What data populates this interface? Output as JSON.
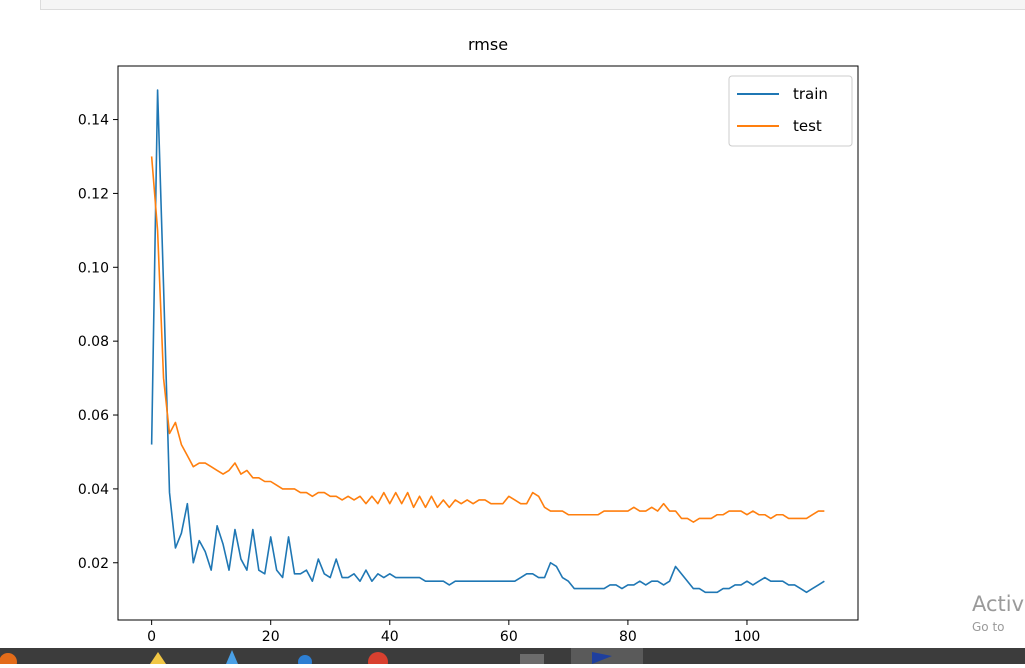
{
  "chart_data": {
    "type": "line",
    "title": "rmse",
    "xlabel": "",
    "ylabel": "",
    "xlim": [
      -5.65,
      118.65
    ],
    "ylim": [
      0.0045,
      0.1545
    ],
    "xticks": [
      0,
      20,
      40,
      60,
      80,
      100
    ],
    "yticks": [
      0.02,
      0.04,
      0.06,
      0.08,
      0.1,
      0.12,
      0.14
    ],
    "ytick_labels": [
      "0.02",
      "0.04",
      "0.06",
      "0.08",
      "0.10",
      "0.12",
      "0.14"
    ],
    "legend": "top-right",
    "grid": false,
    "series": [
      {
        "name": "train",
        "color": "#1f77b4",
        "values": [
          0.052,
          0.148,
          0.095,
          0.039,
          0.024,
          0.028,
          0.036,
          0.02,
          0.026,
          0.023,
          0.018,
          0.03,
          0.025,
          0.018,
          0.029,
          0.021,
          0.018,
          0.029,
          0.018,
          0.017,
          0.027,
          0.018,
          0.016,
          0.027,
          0.017,
          0.017,
          0.018,
          0.015,
          0.021,
          0.017,
          0.016,
          0.021,
          0.016,
          0.016,
          0.017,
          0.015,
          0.018,
          0.015,
          0.017,
          0.016,
          0.017,
          0.016,
          0.016,
          0.016,
          0.016,
          0.016,
          0.015,
          0.015,
          0.015,
          0.015,
          0.014,
          0.015,
          0.015,
          0.015,
          0.015,
          0.015,
          0.015,
          0.015,
          0.015,
          0.015,
          0.015,
          0.015,
          0.016,
          0.017,
          0.017,
          0.016,
          0.016,
          0.02,
          0.019,
          0.016,
          0.015,
          0.013,
          0.013,
          0.013,
          0.013,
          0.013,
          0.013,
          0.014,
          0.014,
          0.013,
          0.014,
          0.014,
          0.015,
          0.014,
          0.015,
          0.015,
          0.014,
          0.015,
          0.019,
          0.017,
          0.015,
          0.013,
          0.013,
          0.012,
          0.012,
          0.012,
          0.013,
          0.013,
          0.014,
          0.014,
          0.015,
          0.014,
          0.015,
          0.016,
          0.015,
          0.015,
          0.015,
          0.014,
          0.014,
          0.013,
          0.012,
          0.013,
          0.014,
          0.015
        ]
      },
      {
        "name": "test",
        "color": "#ff7f0e",
        "values": [
          0.13,
          0.11,
          0.07,
          0.055,
          0.058,
          0.052,
          0.049,
          0.046,
          0.047,
          0.047,
          0.046,
          0.045,
          0.044,
          0.045,
          0.047,
          0.044,
          0.045,
          0.043,
          0.043,
          0.042,
          0.042,
          0.041,
          0.04,
          0.04,
          0.04,
          0.039,
          0.039,
          0.038,
          0.039,
          0.039,
          0.038,
          0.038,
          0.037,
          0.038,
          0.037,
          0.038,
          0.036,
          0.038,
          0.036,
          0.039,
          0.036,
          0.039,
          0.036,
          0.039,
          0.035,
          0.038,
          0.035,
          0.038,
          0.035,
          0.037,
          0.035,
          0.037,
          0.036,
          0.037,
          0.036,
          0.037,
          0.037,
          0.036,
          0.036,
          0.036,
          0.038,
          0.037,
          0.036,
          0.036,
          0.039,
          0.038,
          0.035,
          0.034,
          0.034,
          0.034,
          0.033,
          0.033,
          0.033,
          0.033,
          0.033,
          0.033,
          0.034,
          0.034,
          0.034,
          0.034,
          0.034,
          0.035,
          0.034,
          0.034,
          0.035,
          0.034,
          0.036,
          0.034,
          0.034,
          0.032,
          0.032,
          0.031,
          0.032,
          0.032,
          0.032,
          0.033,
          0.033,
          0.034,
          0.034,
          0.034,
          0.033,
          0.034,
          0.033,
          0.033,
          0.032,
          0.033,
          0.033,
          0.032,
          0.032,
          0.032,
          0.032,
          0.033,
          0.034,
          0.034
        ]
      }
    ]
  },
  "overlay": {
    "activate_title": "Activ",
    "activate_subtitle": "Go to"
  }
}
